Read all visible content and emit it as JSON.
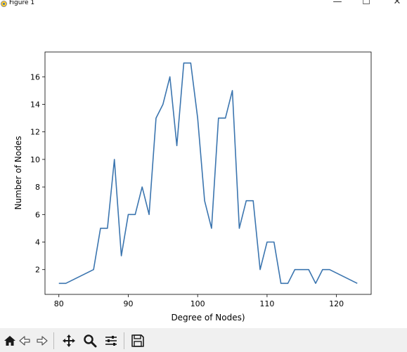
{
  "window": {
    "title": "Figure 1",
    "minimize_icon": "minimize-icon",
    "maximize_icon": "maximize-icon",
    "close_icon": "close-icon"
  },
  "toolbar": {
    "icons": [
      "home-icon",
      "back-arrow-icon",
      "forward-arrow-icon",
      "pan-icon",
      "zoom-icon",
      "configure-subplots-icon",
      "save-icon"
    ]
  },
  "chart_data": {
    "type": "line",
    "title": "",
    "xlabel": "Degree of Nodes)",
    "ylabel": "Number of Nodes",
    "xlim": [
      78,
      125
    ],
    "ylim": [
      0.2,
      17.8
    ],
    "xticks": [
      80,
      90,
      100,
      110,
      120
    ],
    "yticks": [
      2,
      4,
      6,
      8,
      10,
      12,
      14,
      16
    ],
    "grid": false,
    "line_color": "#3b75af",
    "series": [
      {
        "x": [
          80,
          81,
          85,
          86,
          87,
          88,
          89,
          90,
          91,
          92,
          93,
          94,
          95,
          96,
          97,
          98,
          99,
          100,
          101,
          102,
          103,
          104,
          105,
          106,
          107,
          108,
          109,
          110,
          111,
          112,
          113,
          114,
          115,
          116,
          117,
          118,
          119,
          123
        ],
        "y": [
          1,
          1,
          2,
          5,
          5,
          10,
          3,
          6,
          6,
          8,
          6,
          13,
          14,
          16,
          11,
          17,
          17,
          13,
          7,
          5,
          13,
          13,
          15,
          5,
          7,
          7,
          2,
          4,
          4,
          1,
          1,
          2,
          2,
          2,
          1,
          2,
          2,
          1
        ]
      }
    ]
  }
}
